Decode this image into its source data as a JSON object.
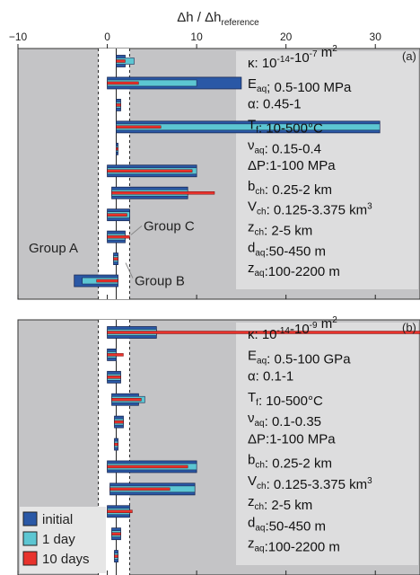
{
  "chart_data": {
    "type": "bar",
    "orientation": "horizontal",
    "xlabel_main": "Δh / Δh",
    "xlabel_sub": "reference",
    "xlim": [
      -10,
      35
    ],
    "xticks": [
      {
        "value": -10,
        "label": "−10"
      },
      {
        "value": 0,
        "label": "0"
      },
      {
        "value": 10,
        "label": "10"
      },
      {
        "value": 20,
        "label": "20"
      },
      {
        "value": 30,
        "label": "30"
      }
    ],
    "reference_band": [
      -1,
      2.5
    ],
    "legend": [
      {
        "name": "initial",
        "color": "#2a58a6"
      },
      {
        "name": "1 day",
        "color": "#5cc6d2"
      },
      {
        "name": "10 days",
        "color": "#e8322c"
      }
    ],
    "colors": {
      "panel_bg": "#c4c4c6",
      "initial": "#2a58a6",
      "day1": "#5cc6d2",
      "day10": "#e8322c",
      "box_bg": "#e0e0e0"
    },
    "panels": [
      {
        "tag": "(a)",
        "bars": [
          {
            "initial": [
              1,
              2
            ],
            "day1": [
              1,
              3
            ],
            "day10": [
              1,
              2
            ]
          },
          {
            "initial": [
              0,
              15
            ],
            "day1": [
              0,
              10
            ],
            "day10": [
              0,
              3.5
            ]
          },
          {
            "initial": [
              1,
              1.5
            ],
            "day1": [
              1,
              1.5
            ],
            "day10": [
              1,
              1.5
            ]
          },
          {
            "initial": [
              1,
              30.5
            ],
            "day1": [
              1,
              30.5
            ],
            "day10": [
              1,
              6
            ]
          },
          {
            "initial": [
              1,
              1.2
            ],
            "day1": [
              1,
              1.2
            ],
            "day10": [
              1,
              1.2
            ]
          },
          {
            "initial": [
              0,
              10
            ],
            "day1": [
              0,
              10
            ],
            "day10": [
              0,
              9.5
            ]
          },
          {
            "initial": [
              0.5,
              9
            ],
            "day1": [
              0.5,
              9
            ],
            "day10": [
              0.5,
              12
            ]
          },
          {
            "initial": [
              0,
              2.5
            ],
            "day1": [
              0,
              2.5
            ],
            "day10": [
              0,
              2.2
            ]
          },
          {
            "initial": [
              0,
              2
            ],
            "day1": [
              0,
              2
            ],
            "day10": [
              0,
              2.5
            ]
          },
          {
            "initial": [
              0.7,
              1.2
            ],
            "day1": [
              0.7,
              1.2
            ],
            "day10": [
              0.7,
              1.2
            ]
          },
          {
            "initial": [
              -3.7,
              1.2
            ],
            "day1": [
              -2.8,
              1.2
            ],
            "day10": [
              -1.2,
              1.2
            ]
          }
        ],
        "annotations": [
          {
            "text": "Group A",
            "row": 8.5
          },
          {
            "text": "Group B",
            "row": 10
          },
          {
            "text": "Group C",
            "row": 7.5
          }
        ],
        "params": [
          {
            "parts": [
              [
                "n",
                "κ: 10"
              ],
              [
                "sup",
                "-14"
              ],
              [
                "n",
                "-10"
              ],
              [
                "sup",
                "-7"
              ],
              [
                "n",
                " m"
              ],
              [
                "sup",
                "2"
              ]
            ]
          },
          {
            "parts": [
              [
                "n",
                "E"
              ],
              [
                "sub",
                "aq"
              ],
              [
                "n",
                "; 0.5-100 MPa"
              ]
            ]
          },
          {
            "parts": [
              [
                "n",
                "α: 0.45-1"
              ]
            ]
          },
          {
            "parts": [
              [
                "n",
                "T"
              ],
              [
                "sub",
                "f"
              ],
              [
                "n",
                ": 10-500°C"
              ]
            ]
          },
          {
            "parts": [
              [
                "n",
                "ν"
              ],
              [
                "sub",
                "aq"
              ],
              [
                "n",
                ": 0.15-0.4"
              ]
            ]
          },
          {
            "parts": [
              [
                "n",
                "ΔP:1-100 MPa"
              ]
            ]
          },
          {
            "parts": [
              [
                "n",
                "b"
              ],
              [
                "sub",
                "ch"
              ],
              [
                "n",
                ": 0.25-2 km"
              ]
            ]
          },
          {
            "parts": [
              [
                "n",
                "V"
              ],
              [
                "sub",
                "ch"
              ],
              [
                "n",
                ": 0.125-3.375 km"
              ],
              [
                "sup",
                "3"
              ]
            ]
          },
          {
            "parts": [
              [
                "n",
                "z"
              ],
              [
                "sub",
                "ch"
              ],
              [
                "n",
                ": 2-5 km"
              ]
            ]
          },
          {
            "parts": [
              [
                "n",
                "d"
              ],
              [
                "sub",
                "aq"
              ],
              [
                "n",
                ":50-450 m"
              ]
            ]
          },
          {
            "parts": [
              [
                "n",
                "z"
              ],
              [
                "sub",
                "aq"
              ],
              [
                "n",
                ":100-2200 m"
              ]
            ]
          }
        ]
      },
      {
        "tag": "(b)",
        "bars": [
          {
            "initial": [
              0,
              5.5
            ],
            "day1": [
              0,
              5.5
            ],
            "day10": [
              0,
              35
            ]
          },
          {
            "initial": [
              0,
              1
            ],
            "day1": [
              0,
              1
            ],
            "day10": [
              0,
              1.8
            ]
          },
          {
            "initial": [
              0,
              1.5
            ],
            "day1": [
              0,
              1.5
            ],
            "day10": [
              0,
              1.5
            ]
          },
          {
            "initial": [
              0.5,
              3.5
            ],
            "day1": [
              0.5,
              4.2
            ],
            "day10": [
              0.5,
              3.8
            ]
          },
          {
            "initial": [
              0.8,
              1.8
            ],
            "day1": [
              0.8,
              1.8
            ],
            "day10": [
              0.8,
              1.8
            ]
          },
          {
            "initial": [
              0.8,
              1.2
            ],
            "day1": [
              0.8,
              1.2
            ],
            "day10": [
              0.8,
              1.2
            ]
          },
          {
            "initial": [
              0,
              10
            ],
            "day1": [
              0,
              10
            ],
            "day10": [
              0,
              9
            ]
          },
          {
            "initial": [
              0.3,
              9.8
            ],
            "day1": [
              0.3,
              9.8
            ],
            "day10": [
              0.3,
              7
            ]
          },
          {
            "initial": [
              0,
              2.5
            ],
            "day1": [
              0,
              2.5
            ],
            "day10": [
              0,
              2.8
            ]
          },
          {
            "initial": [
              0.5,
              1.5
            ],
            "day1": [
              0.5,
              1.5
            ],
            "day10": [
              0.5,
              1.5
            ]
          },
          {
            "initial": [
              0.8,
              1.2
            ],
            "day1": [
              0.8,
              1.2
            ],
            "day10": [
              0.8,
              1.2
            ]
          }
        ],
        "annotations": [],
        "params": [
          {
            "parts": [
              [
                "n",
                "κ: 10"
              ],
              [
                "sup",
                "-14"
              ],
              [
                "n",
                "-10"
              ],
              [
                "sup",
                "-9"
              ],
              [
                "n",
                " m"
              ],
              [
                "sup",
                "2"
              ]
            ]
          },
          {
            "parts": [
              [
                "n",
                "E"
              ],
              [
                "sub",
                "aq"
              ],
              [
                "n",
                ": 0.5-100 GPa"
              ]
            ]
          },
          {
            "parts": [
              [
                "n",
                "α: 0.1-1"
              ]
            ]
          },
          {
            "parts": [
              [
                "n",
                "T"
              ],
              [
                "sub",
                "f"
              ],
              [
                "n",
                ": 10-500°C"
              ]
            ]
          },
          {
            "parts": [
              [
                "n",
                "ν"
              ],
              [
                "sub",
                "aq"
              ],
              [
                "n",
                ": 0.1-0.35"
              ]
            ]
          },
          {
            "parts": [
              [
                "n",
                "ΔP:1-100 MPa"
              ]
            ]
          },
          {
            "parts": [
              [
                "n",
                "b"
              ],
              [
                "sub",
                "ch"
              ],
              [
                "n",
                ": 0.25-2 km"
              ]
            ]
          },
          {
            "parts": [
              [
                "n",
                "V"
              ],
              [
                "sub",
                "ch"
              ],
              [
                "n",
                ": 0.125-3.375 km"
              ],
              [
                "sup",
                "3"
              ]
            ]
          },
          {
            "parts": [
              [
                "n",
                "z"
              ],
              [
                "sub",
                "ch"
              ],
              [
                "n",
                ": 2-5 km"
              ]
            ]
          },
          {
            "parts": [
              [
                "n",
                "d"
              ],
              [
                "sub",
                "aq"
              ],
              [
                "n",
                ":50-450 m"
              ]
            ]
          },
          {
            "parts": [
              [
                "n",
                "z"
              ],
              [
                "sub",
                "aq"
              ],
              [
                "n",
                ":100-2200 m"
              ]
            ]
          }
        ]
      }
    ]
  }
}
